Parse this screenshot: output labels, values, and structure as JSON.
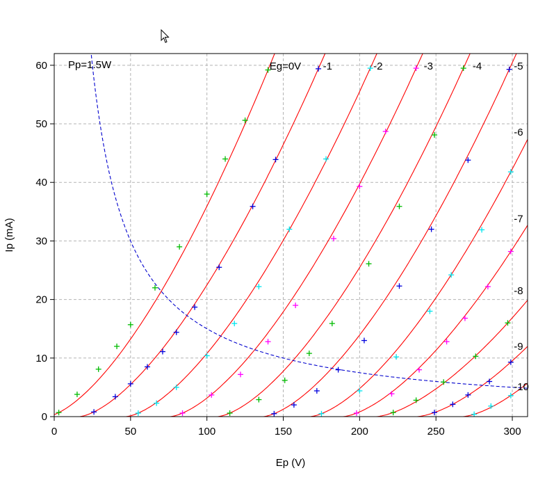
{
  "chart_data": {
    "type": "line",
    "xlabel": "Ep (V)",
    "ylabel": "Ip (mA)",
    "xlim": [
      0,
      310
    ],
    "ylim": [
      0,
      62
    ],
    "xticks": [
      0,
      50,
      100,
      150,
      200,
      250,
      300
    ],
    "yticks": [
      0,
      10,
      20,
      30,
      40,
      50,
      60
    ],
    "grid": true,
    "grid_values": {
      "x": [
        50,
        100,
        150,
        200,
        250,
        300
      ],
      "y": [
        10,
        20,
        30,
        40,
        50,
        60
      ]
    },
    "colors": {
      "curve": "#ff0000",
      "power_curve": "#0000cd",
      "grid": "#b3b3b3",
      "point_colors": [
        "#00bb00",
        "#0000dd",
        "#00e5ee",
        "#ff00ff"
      ]
    },
    "power_curve": {
      "label": "Pp=1.5W",
      "watts": 1.5,
      "style": "dashed"
    },
    "curve_labels": [
      {
        "text": "Eg=0V",
        "x": 141,
        "y": 60
      },
      {
        "text": "-1",
        "x": 176,
        "y": 60
      },
      {
        "text": "-2",
        "x": 209,
        "y": 60
      },
      {
        "text": "-3",
        "x": 242,
        "y": 60
      },
      {
        "text": "-4",
        "x": 274,
        "y": 60
      },
      {
        "text": "-5",
        "x": 301,
        "y": 60
      },
      {
        "text": "-6",
        "x": 301,
        "y": 48.7
      },
      {
        "text": "-7",
        "x": 301,
        "y": 33.9
      },
      {
        "text": "-8",
        "x": 301,
        "y": 21.6
      },
      {
        "text": "-9",
        "x": 301,
        "y": 12.1
      },
      {
        "text": "-10",
        "x": 301,
        "y": 5.2
      }
    ],
    "series": [
      {
        "eg": 0,
        "points": [
          [
            3,
            0.7
          ],
          [
            15,
            3.8
          ],
          [
            29,
            8.1
          ],
          [
            41,
            12
          ],
          [
            50,
            15.7
          ],
          [
            66,
            22
          ],
          [
            82,
            29
          ],
          [
            100,
            38
          ],
          [
            112,
            44
          ],
          [
            125,
            50.6
          ],
          [
            140,
            59.2
          ]
        ]
      },
      {
        "eg": -1,
        "points": [
          [
            26,
            0.8
          ],
          [
            40,
            3.4
          ],
          [
            50,
            5.6
          ],
          [
            61,
            8.5
          ],
          [
            71,
            11.1
          ],
          [
            80,
            14.4
          ],
          [
            92,
            18.7
          ],
          [
            108,
            25.5
          ],
          [
            130,
            35.9
          ],
          [
            145,
            43.9
          ],
          [
            173,
            59.4
          ]
        ]
      },
      {
        "eg": -2,
        "points": [
          [
            55,
            0.6
          ],
          [
            67,
            2.3
          ],
          [
            80,
            5
          ],
          [
            100,
            10.4
          ],
          [
            118,
            15.9
          ],
          [
            134,
            22.2
          ],
          [
            154,
            32
          ],
          [
            178,
            44
          ],
          [
            207,
            59.5
          ]
        ]
      },
      {
        "eg": -3,
        "points": [
          [
            84,
            0.6
          ],
          [
            103,
            3.7
          ],
          [
            122,
            7.2
          ],
          [
            140,
            12.8
          ],
          [
            158,
            19
          ],
          [
            183,
            30.4
          ],
          [
            200,
            39.3
          ],
          [
            217,
            48.7
          ],
          [
            237,
            59.5
          ]
        ]
      },
      {
        "eg": -4,
        "points": [
          [
            115,
            0.6
          ],
          [
            134,
            2.9
          ],
          [
            151,
            6.2
          ],
          [
            167,
            10.8
          ],
          [
            182,
            15.9
          ],
          [
            206,
            26.1
          ],
          [
            226,
            35.9
          ],
          [
            249,
            48.1
          ],
          [
            268,
            59.5
          ]
        ]
      },
      {
        "eg": -5,
        "points": [
          [
            144,
            0.5
          ],
          [
            157,
            2
          ],
          [
            172,
            4.4
          ],
          [
            186,
            8
          ],
          [
            203,
            13
          ],
          [
            226,
            22.3
          ],
          [
            247,
            32
          ],
          [
            271,
            43.8
          ],
          [
            298,
            59.3
          ]
        ]
      },
      {
        "eg": -6,
        "points": [
          [
            175,
            0.5
          ],
          [
            200,
            4.4
          ],
          [
            224,
            10.2
          ],
          [
            246,
            18
          ],
          [
            260,
            24.2
          ],
          [
            280,
            31.9
          ],
          [
            299,
            41.8
          ]
        ]
      },
      {
        "eg": -7,
        "points": [
          [
            198,
            0.6
          ],
          [
            221,
            3.9
          ],
          [
            239,
            8
          ],
          [
            257,
            12.8
          ],
          [
            269,
            16.8
          ],
          [
            284,
            22.2
          ],
          [
            299,
            28.2
          ]
        ]
      },
      {
        "eg": -8,
        "points": [
          [
            222,
            0.7
          ],
          [
            237,
            2.8
          ],
          [
            255,
            5.9
          ],
          [
            276,
            10.3
          ],
          [
            297,
            16
          ]
        ]
      },
      {
        "eg": -9,
        "points": [
          [
            249,
            0.7
          ],
          [
            261,
            2.1
          ],
          [
            271,
            3.7
          ],
          [
            285,
            6
          ],
          [
            299,
            9.3
          ]
        ]
      },
      {
        "eg": -10,
        "points": [
          [
            275,
            0.4
          ],
          [
            286,
            1.8
          ],
          [
            299,
            3.6
          ]
        ]
      }
    ]
  }
}
